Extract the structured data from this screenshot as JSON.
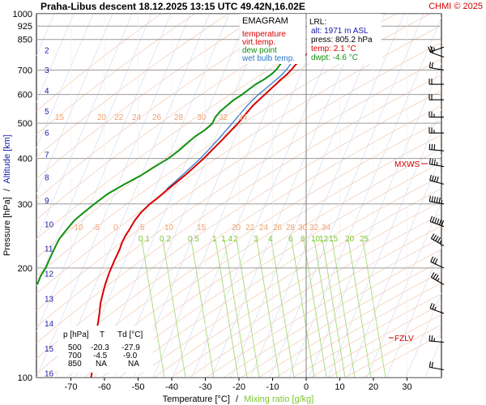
{
  "header": {
    "title": "Praha-Libus  descent  18.12.2025 13:15 UTC  49.42N,16.02E",
    "copyright": "CHMI © 2025"
  },
  "legend": {
    "title": "EMAGRAM",
    "items": [
      {
        "label": "temperature",
        "color": "#d80000"
      },
      {
        "label": "virt.temp.",
        "color": "#d80000"
      },
      {
        "label": "dew point",
        "color": "#109010"
      },
      {
        "label": "wet bulb temp.",
        "color": "#2878c8"
      }
    ]
  },
  "lrl": {
    "title": "LRL:",
    "alt": "alt: 1971 m ASL",
    "press": "press: 805.2 hPa",
    "temp": "temp: 2.1 °C",
    "dwpt": "dwpt: -4.6 °C"
  },
  "markers": {
    "mxws": "MXWS",
    "fzlv": "FZLV"
  },
  "summary_table": {
    "headers": [
      "p [hPa]",
      "T",
      "Td [°C]"
    ],
    "rows": [
      [
        "500",
        "-20.3",
        "-27.9"
      ],
      [
        "700",
        "-4.5",
        "-9.0"
      ],
      [
        "850",
        "NA",
        "NA"
      ]
    ]
  },
  "axis_labels": {
    "y_left_a": "Pressure [hPa]",
    "y_left_sep": "/",
    "y_left_b": "Altitude [km]",
    "x_a": "Temperature [°C]",
    "x_sep": "/",
    "x_b": "Mixing ratio [g/kg]"
  },
  "chart_data": {
    "type": "line",
    "y_scale": "log",
    "ylim": [
      1000,
      100
    ],
    "xlim": [
      -80,
      40
    ],
    "x_ticks": [
      "-70",
      "-60",
      "-50",
      "-40",
      "-30",
      "-20",
      "-10",
      "0",
      "10",
      "20",
      "30"
    ],
    "pressure_ticks": [
      "100",
      "200",
      "300",
      "400",
      "500",
      "600",
      "700",
      "850",
      "925",
      "1000"
    ],
    "altitude_ticks": [
      "16",
      "15",
      "14",
      "13",
      "12",
      "11",
      "10",
      "9",
      "8",
      "7",
      "6",
      "5",
      "4",
      "3",
      "2"
    ],
    "mixing_ratio_labels": [
      "0.1",
      "0.2",
      "0.5",
      "1",
      "1.4",
      "2",
      "3",
      "4",
      "6",
      "8",
      "10",
      "12",
      "15",
      "20",
      "25"
    ],
    "isotherm_labels_upper": [
      "15",
      "20",
      "22",
      "24",
      "26",
      "28",
      "30",
      "32",
      "34"
    ],
    "isotherm_labels_lower": [
      "-10",
      "-5",
      "0",
      "5",
      "10",
      "15",
      "20",
      "22",
      "24",
      "26",
      "28",
      "30",
      "32",
      "34"
    ],
    "series": [
      {
        "name": "temperature",
        "color": "#d80000",
        "p": [
          805,
          780,
          760,
          740,
          720,
          700,
          680,
          660,
          640,
          620,
          600,
          560,
          500,
          450,
          400,
          360,
          330,
          310,
          300,
          285,
          270,
          255,
          245,
          235,
          225,
          210,
          195,
          180,
          170,
          160,
          150,
          140,
          130,
          120,
          115,
          110,
          105,
          100
        ],
        "t": [
          2.1,
          0.6,
          -1.0,
          -2.1,
          -3.4,
          -4.5,
          -5.8,
          -7.5,
          -9.0,
          -10.6,
          -12.3,
          -15.8,
          -20.3,
          -25.0,
          -30.5,
          -36.0,
          -41.0,
          -44.5,
          -46.5,
          -49.0,
          -51.0,
          -52.6,
          -53.8,
          -54.8,
          -55.5,
          -57.0,
          -58.5,
          -59.8,
          -60.5,
          -61.2,
          -61.5,
          -62.0,
          -62.4,
          -62.6,
          -62.8,
          -63.2,
          -63.6,
          -64.0
        ]
      },
      {
        "name": "dew point",
        "color": "#109010",
        "p": [
          805,
          780,
          760,
          740,
          720,
          700,
          680,
          660,
          640,
          620,
          600,
          580,
          560,
          540,
          520,
          500,
          480,
          460,
          440,
          420,
          400,
          380,
          360,
          340,
          320,
          300,
          290,
          280,
          270,
          260,
          250,
          240,
          230,
          220,
          210,
          200,
          190,
          180
        ],
        "t": [
          -4.6,
          -4.3,
          -6.0,
          -7.0,
          -8.0,
          -9.0,
          -10.5,
          -12.5,
          -15.0,
          -17.0,
          -19.0,
          -21.5,
          -23.5,
          -25.5,
          -27.0,
          -27.9,
          -30.0,
          -33.0,
          -35.5,
          -38.0,
          -41.0,
          -45.0,
          -49.0,
          -54.0,
          -59.0,
          -63.0,
          -65.0,
          -67.0,
          -69.0,
          -70.5,
          -72.0,
          -73.5,
          -74.5,
          -75.5,
          -76.5,
          -77.5,
          -79.0,
          -80.0
        ]
      },
      {
        "name": "wet bulb temp.",
        "color": "#2878c8",
        "p": [
          805,
          780,
          760,
          740,
          720,
          700,
          680,
          660,
          640,
          620,
          600,
          560,
          500,
          450,
          400,
          360,
          330
        ],
        "t": [
          -0.5,
          -1.5,
          -3.0,
          -4.0,
          -5.0,
          -6.0,
          -7.2,
          -8.8,
          -10.5,
          -12.3,
          -14.2,
          -17.5,
          -22.0,
          -26.3,
          -31.5,
          -36.8,
          -41.5
        ]
      }
    ],
    "wind_barbs": {
      "p": [
        105,
        125,
        150,
        180,
        200,
        230,
        260,
        300,
        340,
        380,
        420,
        470,
        520,
        580,
        640,
        700,
        760,
        810
      ],
      "dir_deg": [
        280,
        275,
        290,
        300,
        295,
        300,
        290,
        280,
        285,
        280,
        275,
        270,
        270,
        270,
        270,
        280,
        290,
        250
      ],
      "speed_kt": [
        20,
        25,
        25,
        35,
        30,
        45,
        60,
        55,
        40,
        35,
        30,
        25,
        25,
        20,
        20,
        20,
        15,
        25
      ]
    }
  }
}
